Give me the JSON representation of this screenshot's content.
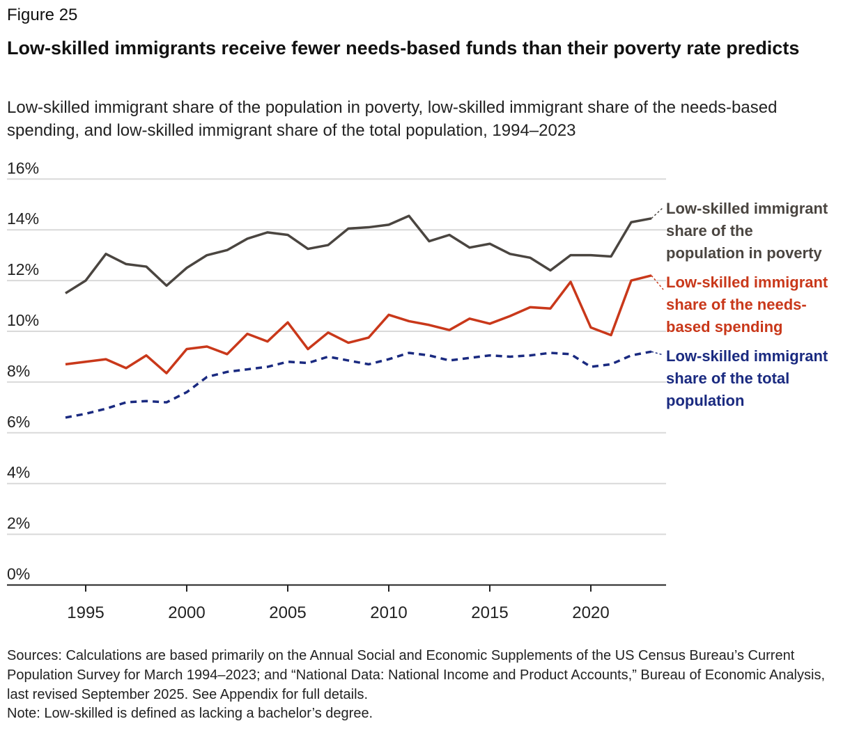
{
  "figure_label": "Figure 25",
  "title": "Low-skilled immigrants receive fewer needs-based funds than their poverty rate predicts",
  "subtitle": "Low-skilled immigrant share of the population in poverty, low-skilled immigrant share of the needs-based spending, and low-skilled immigrant share of the total population, 1994–2023",
  "sources": "Sources: Calculations are based primarily on the Annual Social and Economic Supplements of the US Census Bureau’s Current Population Survey for March 1994–2023; and “National Data: National Income and Product Accounts,” Bureau of Economic Analysis, last revised September 2025. See Appendix for full details.",
  "note": "Note: Low-skilled is defined as lacking a bachelor’s degree.",
  "chart_data": {
    "type": "line",
    "xlabel": "",
    "ylabel": "",
    "ylim": [
      0,
      16
    ],
    "yticks": [
      "0%",
      "2%",
      "4%",
      "6%",
      "8%",
      "10%",
      "12%",
      "14%",
      "16%"
    ],
    "xticks": [
      "1995",
      "2000",
      "2005",
      "2010",
      "2015",
      "2020"
    ],
    "grid": true,
    "legend": "direct labels at right",
    "x": [
      1994,
      1995,
      1996,
      1997,
      1998,
      1999,
      2000,
      2001,
      2002,
      2003,
      2004,
      2005,
      2006,
      2007,
      2008,
      2009,
      2010,
      2011,
      2012,
      2013,
      2014,
      2015,
      2016,
      2017,
      2018,
      2019,
      2020,
      2021,
      2022,
      2023
    ],
    "series": [
      {
        "name": "Low-skilled immigrant share of the population in poverty",
        "color": "#4a4540",
        "style": "solid",
        "values": [
          11.5,
          12.0,
          13.05,
          12.65,
          12.55,
          11.8,
          12.5,
          13.0,
          13.2,
          13.65,
          13.9,
          13.8,
          13.25,
          13.4,
          14.05,
          14.1,
          14.2,
          14.55,
          13.55,
          13.8,
          13.3,
          13.45,
          13.05,
          12.9,
          12.4,
          13.0,
          13.0,
          12.95,
          14.3,
          14.45
        ]
      },
      {
        "name": "Low-skilled immigrant share of the needs-based spending",
        "color": "#c9381a",
        "style": "solid",
        "values": [
          8.7,
          8.8,
          8.9,
          8.55,
          9.05,
          8.35,
          9.3,
          9.4,
          9.1,
          9.9,
          9.6,
          10.35,
          9.3,
          9.95,
          9.55,
          9.75,
          10.65,
          10.4,
          10.25,
          10.05,
          10.5,
          10.3,
          10.6,
          10.95,
          10.9,
          11.95,
          10.15,
          9.85,
          12.0,
          12.2
        ]
      },
      {
        "name": "Low-skilled immigrant share of the total population",
        "color": "#1a2a80",
        "style": "dashed",
        "values": [
          6.6,
          6.75,
          6.95,
          7.2,
          7.25,
          7.2,
          7.6,
          8.2,
          8.4,
          8.5,
          8.6,
          8.8,
          8.75,
          9.0,
          8.85,
          8.7,
          8.9,
          9.15,
          9.05,
          8.85,
          8.95,
          9.05,
          9.0,
          9.05,
          9.15,
          9.1,
          8.6,
          8.7,
          9.05,
          9.2
        ]
      }
    ],
    "labels": [
      [
        "Low-skilled immigrant",
        "share of the",
        "population in poverty"
      ],
      [
        "Low-skilled immigrant",
        "share of the needs-",
        "based spending"
      ],
      [
        "Low-skilled immigrant",
        "share of the total",
        "population"
      ]
    ]
  }
}
